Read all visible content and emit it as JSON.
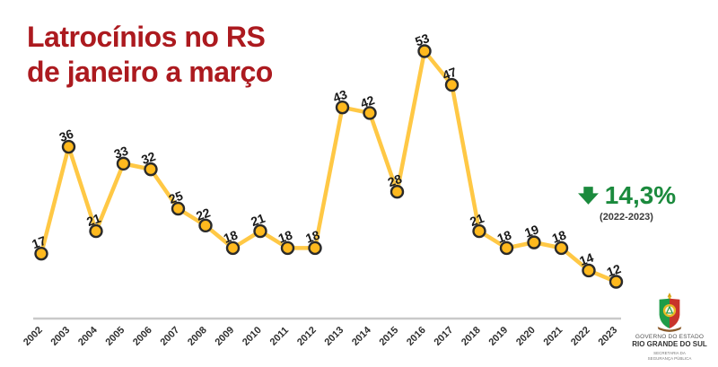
{
  "title": {
    "line1": "Latrocínios no RS",
    "line2": "de janeiro a março",
    "color": "#AC1A1F"
  },
  "chart_data": {
    "type": "line",
    "title": "Latrocínios no RS de janeiro a março",
    "categories": [
      "2002",
      "2003",
      "2004",
      "2005",
      "2006",
      "2007",
      "2008",
      "2009",
      "2010",
      "2011",
      "2012",
      "2013",
      "2014",
      "2015",
      "2016",
      "2017",
      "2018",
      "2019",
      "2020",
      "2021",
      "2022",
      "2023"
    ],
    "values": [
      17,
      36,
      21,
      33,
      32,
      25,
      22,
      18,
      21,
      18,
      18,
      43,
      42,
      28,
      53,
      47,
      21,
      18,
      19,
      18,
      14,
      12
    ],
    "xlabel": "",
    "ylabel": "",
    "ylim": [
      12,
      53
    ],
    "grid": false,
    "legend": false,
    "data_labels": true,
    "line_color": "#FFC845",
    "marker_fill": "#FFB91E",
    "marker_stroke": "#2a2a2a",
    "data_label_color": "#191919",
    "tick_label_color": "#2e2e2e",
    "axis_line_color": "#c9c9c9"
  },
  "annotation": {
    "icon": "arrow-down",
    "value": "14,3%",
    "period": "(2022-2023)",
    "color": "#1B8A3D"
  },
  "logo": {
    "line1": "GOVERNO DO ESTADO",
    "line2": "RIO GRANDE DO SUL",
    "line3": "SECRETARIA DA",
    "line4": "SEGURANÇA PÚBLICA"
  }
}
